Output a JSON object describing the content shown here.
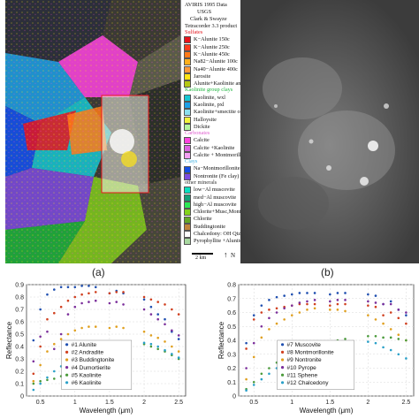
{
  "panel_a": {
    "caption": "(a)",
    "title_lines": [
      "AVIRIS 1995 Data",
      "USGS",
      "Clark & Swayze",
      "Tetracorder 3.3 product"
    ],
    "scale_label": "2 km",
    "north_label": "N",
    "legend": [
      {
        "kind": "head",
        "text": "Sulfates",
        "color": "#e4141c"
      },
      {
        "kind": "item",
        "text": "K−Alunite 150c",
        "color": "#e8141c"
      },
      {
        "kind": "item",
        "text": "K−Alunite 250c",
        "color": "#ff3c1e"
      },
      {
        "kind": "item",
        "text": "K−Alunite 450c",
        "color": "#ff7a18"
      },
      {
        "kind": "item",
        "text": "Na82−Alunite 100c",
        "color": "#ffb01c"
      },
      {
        "kind": "item",
        "text": "Na40−Alunite 400c",
        "color": "#ff9a3a"
      },
      {
        "kind": "item",
        "text": "Jarosite",
        "color": "#ffe414"
      },
      {
        "kind": "item",
        "text": "Alunite+Kaolinite and/or Muscovite",
        "color": "#b4c814"
      },
      {
        "kind": "head",
        "text": "Kaolinite group clays",
        "color": "#1cb43c"
      },
      {
        "kind": "item",
        "text": "Kaolinite, wxl",
        "color": "#14c8d4"
      },
      {
        "kind": "item",
        "text": "Kaolinite, pxl",
        "color": "#1ca0e8"
      },
      {
        "kind": "item",
        "text": "Kaolinite+smectite or muscovite",
        "color": "#8ce0f0"
      },
      {
        "kind": "item",
        "text": "Halloysite",
        "color": "#f4f43c"
      },
      {
        "kind": "item",
        "text": "Dickite",
        "color": "#b4f4a0"
      },
      {
        "kind": "head",
        "text": "Carbonates",
        "color": "#e060d0"
      },
      {
        "kind": "item",
        "text": "Calcite",
        "color": "#ff44e0"
      },
      {
        "kind": "item",
        "text": "Calcite +Kaolinite",
        "color": "#dc64e4"
      },
      {
        "kind": "item",
        "text": "Calcite + Montmorillonite",
        "color": "#f4a0f4"
      },
      {
        "kind": "head",
        "text": "Clays",
        "color": "#40b0e0"
      },
      {
        "kind": "item",
        "text": "Na−Montmorillonite",
        "color": "#1450e8"
      },
      {
        "kind": "item",
        "text": "Nontronite (Fe clay)",
        "color": "#7c4ce0"
      },
      {
        "kind": "head",
        "text": "other minerals",
        "color": "#333333"
      },
      {
        "kind": "item",
        "text": "low−Al muscovite",
        "color": "#0ae0c0"
      },
      {
        "kind": "item",
        "text": "med−Al muscovite",
        "color": "#14a078"
      },
      {
        "kind": "item",
        "text": "high−Al muscovite",
        "color": "#2ce854"
      },
      {
        "kind": "item",
        "text": "Chlorite+Musc,Mont",
        "color": "#84d41c"
      },
      {
        "kind": "item",
        "text": "Chlorite",
        "color": "#64a828"
      },
      {
        "kind": "item",
        "text": "Buddingtonite",
        "color": "#c0843c"
      },
      {
        "kind": "item",
        "text": "Chalcedony: OH Qtz",
        "color": "#ffffff"
      },
      {
        "kind": "item",
        "text": "Pyrophyllite +Alunite",
        "color": "#a8d8a0"
      }
    ]
  },
  "panel_b": {
    "caption": "(b)"
  },
  "chart_data": [
    {
      "type": "scatter",
      "xlabel": "Wavelength (μm)",
      "ylabel": "Reflectance",
      "xlim": [
        0.3,
        2.6
      ],
      "ylim": [
        0,
        0.9
      ],
      "xticks": [
        0.5,
        1,
        1.5,
        2,
        2.5
      ],
      "yticks": [
        0,
        0.1,
        0.2,
        0.3,
        0.4,
        0.5,
        0.6,
        0.7,
        0.8,
        0.9
      ],
      "grid": true,
      "legend_position": "bottom-center",
      "series": [
        {
          "name": "#1 Alunite",
          "color": "#1f4fb0",
          "x": [
            0.4,
            0.5,
            0.6,
            0.7,
            0.8,
            0.9,
            1.0,
            1.1,
            1.2,
            1.3,
            1.5,
            1.6,
            1.7,
            2.0,
            2.1,
            2.2,
            2.3,
            2.4,
            2.5
          ],
          "y": [
            0.45,
            0.7,
            0.82,
            0.86,
            0.88,
            0.88,
            0.88,
            0.89,
            0.89,
            0.88,
            0.83,
            0.85,
            0.83,
            0.78,
            0.72,
            0.66,
            0.62,
            0.52,
            0.46
          ]
        },
        {
          "name": "#2 Andradite",
          "color": "#d04020",
          "x": [
            0.4,
            0.5,
            0.6,
            0.7,
            0.8,
            0.9,
            1.0,
            1.1,
            1.2,
            1.3,
            1.5,
            1.6,
            1.7,
            2.0,
            2.1,
            2.2,
            2.3,
            2.4,
            2.5
          ],
          "y": [
            0.18,
            0.4,
            0.62,
            0.67,
            0.72,
            0.77,
            0.8,
            0.82,
            0.83,
            0.84,
            0.83,
            0.84,
            0.84,
            0.8,
            0.78,
            0.76,
            0.74,
            0.7,
            0.66
          ]
        },
        {
          "name": "#3 Buddingtonite",
          "color": "#e0a020",
          "x": [
            0.4,
            0.5,
            0.6,
            0.7,
            0.8,
            0.9,
            1.0,
            1.1,
            1.2,
            1.3,
            1.5,
            1.6,
            1.7,
            2.0,
            2.1,
            2.2,
            2.3,
            2.4,
            2.5
          ],
          "y": [
            0.12,
            0.25,
            0.36,
            0.42,
            0.46,
            0.5,
            0.53,
            0.55,
            0.56,
            0.56,
            0.55,
            0.56,
            0.55,
            0.52,
            0.49,
            0.47,
            0.44,
            0.4,
            0.36
          ]
        },
        {
          "name": "#4 Dumortierite",
          "color": "#7b2f9b",
          "x": [
            0.4,
            0.5,
            0.6,
            0.7,
            0.8,
            0.9,
            1.0,
            1.1,
            1.2,
            1.3,
            1.5,
            1.6,
            1.7,
            2.0,
            2.1,
            2.2,
            2.3,
            2.4,
            2.5
          ],
          "y": [
            0.28,
            0.48,
            0.52,
            0.38,
            0.5,
            0.66,
            0.72,
            0.75,
            0.76,
            0.77,
            0.75,
            0.76,
            0.74,
            0.7,
            0.66,
            0.62,
            0.58,
            0.53,
            0.49
          ]
        },
        {
          "name": "#5 Kaolinite",
          "color": "#4a9a3a",
          "x": [
            0.4,
            0.5,
            0.6,
            0.7,
            0.8,
            0.9,
            1.0,
            1.1,
            1.2,
            1.3,
            1.5,
            1.6,
            1.7,
            2.0,
            2.1,
            2.2,
            2.3,
            2.4,
            2.5
          ],
          "y": [
            0.1,
            0.12,
            0.13,
            0.14,
            0.16,
            0.18,
            0.21,
            0.24,
            0.28,
            0.32,
            0.35,
            0.39,
            0.4,
            0.42,
            0.4,
            0.38,
            0.36,
            0.33,
            0.3
          ]
        },
        {
          "name": "#6 Kaolinite",
          "color": "#2aa0c8",
          "x": [
            0.4,
            0.5,
            0.6,
            0.7,
            0.8,
            0.9,
            1.0,
            1.1,
            1.2,
            1.3,
            1.5,
            1.6,
            1.7,
            2.0,
            2.1,
            2.2,
            2.3,
            2.4,
            2.5
          ],
          "y": [
            0.05,
            0.1,
            0.15,
            0.2,
            0.24,
            0.28,
            0.31,
            0.34,
            0.36,
            0.38,
            0.4,
            0.42,
            0.42,
            0.43,
            0.42,
            0.4,
            0.37,
            0.34,
            0.31
          ]
        }
      ]
    },
    {
      "type": "scatter",
      "xlabel": "Wavelength (μm)",
      "ylabel": "Reflectance",
      "xlim": [
        0.3,
        2.6
      ],
      "ylim": [
        0,
        0.8
      ],
      "xticks": [
        0.5,
        1,
        1.5,
        2,
        2.5
      ],
      "yticks": [
        0,
        0.1,
        0.2,
        0.3,
        0.4,
        0.5,
        0.6,
        0.7,
        0.8
      ],
      "grid": true,
      "legend_position": "bottom-center",
      "series": [
        {
          "name": "#7 Muscovite",
          "color": "#1f4fb0",
          "x": [
            0.4,
            0.5,
            0.6,
            0.7,
            0.8,
            0.9,
            1.0,
            1.1,
            1.2,
            1.3,
            1.5,
            1.6,
            1.7,
            2.0,
            2.1,
            2.2,
            2.3,
            2.4,
            2.5
          ],
          "y": [
            0.38,
            0.58,
            0.65,
            0.69,
            0.71,
            0.72,
            0.73,
            0.74,
            0.74,
            0.74,
            0.73,
            0.74,
            0.74,
            0.73,
            0.72,
            0.66,
            0.68,
            0.62,
            0.58
          ]
        },
        {
          "name": "#8 Montmorillonite",
          "color": "#d04020",
          "x": [
            0.4,
            0.5,
            0.6,
            0.7,
            0.8,
            0.9,
            1.0,
            1.1,
            1.2,
            1.3,
            1.5,
            1.6,
            1.7,
            2.0,
            2.1,
            2.2,
            2.3,
            2.4,
            2.5
          ],
          "y": [
            0.34,
            0.55,
            0.6,
            0.62,
            0.63,
            0.64,
            0.65,
            0.66,
            0.66,
            0.66,
            0.65,
            0.66,
            0.66,
            0.65,
            0.64,
            0.58,
            0.6,
            0.56,
            0.52
          ]
        },
        {
          "name": "#9 Nontronite",
          "color": "#e0a020",
          "x": [
            0.4,
            0.5,
            0.6,
            0.7,
            0.8,
            0.9,
            1.0,
            1.1,
            1.2,
            1.3,
            1.5,
            1.6,
            1.7,
            2.0,
            2.1,
            2.2,
            2.3,
            2.4,
            2.5
          ],
          "y": [
            0.12,
            0.28,
            0.42,
            0.48,
            0.52,
            0.55,
            0.58,
            0.6,
            0.62,
            0.63,
            0.62,
            0.62,
            0.61,
            0.58,
            0.55,
            0.52,
            0.48,
            0.44,
            0.4
          ]
        },
        {
          "name": "#10 Pyrope",
          "color": "#7b2f9b",
          "x": [
            0.4,
            0.5,
            0.6,
            0.7,
            0.8,
            0.9,
            1.0,
            1.1,
            1.2,
            1.3,
            1.5,
            1.6,
            1.7,
            2.0,
            2.1,
            2.2,
            2.3,
            2.4,
            2.5
          ],
          "y": [
            0.2,
            0.38,
            0.5,
            0.56,
            0.6,
            0.63,
            0.65,
            0.67,
            0.68,
            0.69,
            0.68,
            0.69,
            0.69,
            0.68,
            0.67,
            0.66,
            0.66,
            0.62,
            0.6
          ]
        },
        {
          "name": "#11 Sphene",
          "color": "#4a9a3a",
          "x": [
            0.4,
            0.5,
            0.6,
            0.7,
            0.8,
            0.9,
            1.0,
            1.1,
            1.2,
            1.3,
            1.5,
            1.6,
            1.7,
            2.0,
            2.1,
            2.2,
            2.3,
            2.4,
            2.5
          ],
          "y": [
            0.05,
            0.1,
            0.16,
            0.2,
            0.24,
            0.28,
            0.3,
            0.33,
            0.35,
            0.37,
            0.38,
            0.4,
            0.41,
            0.43,
            0.43,
            0.42,
            0.42,
            0.41,
            0.4
          ]
        },
        {
          "name": "#12 Chalcedony",
          "color": "#2aa0c8",
          "x": [
            0.4,
            0.5,
            0.6,
            0.7,
            0.8,
            0.9,
            1.0,
            1.1,
            1.2,
            1.3,
            1.5,
            1.6,
            1.7,
            2.0,
            2.1,
            2.2,
            2.3,
            2.4,
            2.5
          ],
          "y": [
            0.04,
            0.08,
            0.12,
            0.16,
            0.2,
            0.24,
            0.27,
            0.3,
            0.33,
            0.35,
            0.37,
            0.38,
            0.38,
            0.39,
            0.38,
            0.35,
            0.33,
            0.3,
            0.27
          ]
        }
      ]
    }
  ]
}
